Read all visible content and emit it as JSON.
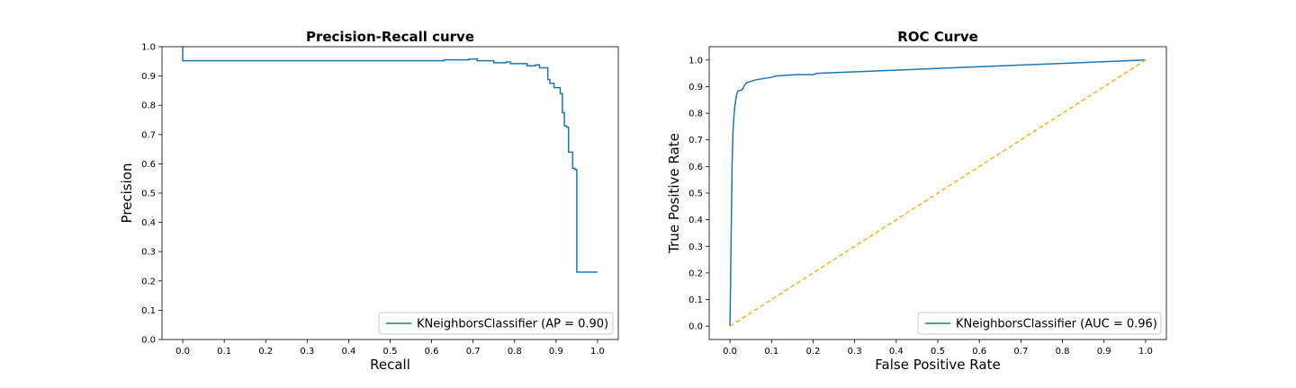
{
  "colors": {
    "curve": "#1f77b4",
    "chance_line": "#ffa500",
    "axes": "#000000",
    "legend_border": "#cccccc",
    "background": "#ffffff"
  },
  "chart_data": [
    {
      "type": "line",
      "title": "Precision-Recall curve",
      "xlabel": "Recall",
      "ylabel": "Precision",
      "xlim": [
        -0.05,
        1.05
      ],
      "ylim": [
        0.0,
        1.0
      ],
      "xticks": [
        "0.0",
        "0.1",
        "0.2",
        "0.3",
        "0.4",
        "0.5",
        "0.6",
        "0.7",
        "0.8",
        "0.9",
        "1.0"
      ],
      "yticks": [
        "0.0",
        "0.1",
        "0.2",
        "0.3",
        "0.4",
        "0.5",
        "0.6",
        "0.7",
        "0.8",
        "0.9",
        "1.0"
      ],
      "grid": false,
      "legend_position": "lower-right",
      "series": [
        {
          "name": "KNeighborsClassifier (AP = 0.90)",
          "drawstyle": "steps",
          "x": [
            0.0,
            0.0,
            0.63,
            0.63,
            0.69,
            0.69,
            0.71,
            0.71,
            0.75,
            0.75,
            0.78,
            0.78,
            0.79,
            0.79,
            0.83,
            0.83,
            0.85,
            0.85,
            0.86,
            0.86,
            0.88,
            0.88,
            0.885,
            0.885,
            0.895,
            0.895,
            0.91,
            0.91,
            0.915,
            0.915,
            0.92,
            0.92,
            0.925,
            0.925,
            0.93,
            0.93,
            0.94,
            0.94,
            0.945,
            0.945,
            0.95,
            0.95,
            1.0
          ],
          "y": [
            1.0,
            0.952,
            0.952,
            0.955,
            0.955,
            0.958,
            0.958,
            0.952,
            0.952,
            0.945,
            0.945,
            0.948,
            0.948,
            0.942,
            0.942,
            0.935,
            0.935,
            0.938,
            0.938,
            0.928,
            0.928,
            0.888,
            0.888,
            0.875,
            0.875,
            0.86,
            0.86,
            0.84,
            0.84,
            0.775,
            0.775,
            0.73,
            0.73,
            0.725,
            0.725,
            0.64,
            0.64,
            0.585,
            0.585,
            0.58,
            0.58,
            0.23,
            0.23
          ]
        }
      ]
    },
    {
      "type": "line",
      "title": "ROC Curve",
      "xlabel": "False Positive Rate",
      "ylabel": "True Positive Rate",
      "xlim": [
        -0.05,
        1.05
      ],
      "ylim": [
        -0.05,
        1.05
      ],
      "xticks": [
        "0.0",
        "0.1",
        "0.2",
        "0.3",
        "0.4",
        "0.5",
        "0.6",
        "0.7",
        "0.8",
        "0.9",
        "1.0"
      ],
      "yticks": [
        "0.0",
        "0.1",
        "0.2",
        "0.3",
        "0.4",
        "0.5",
        "0.6",
        "0.7",
        "0.8",
        "0.9",
        "1.0"
      ],
      "grid": false,
      "legend_position": "lower-right",
      "series": [
        {
          "name": "KNeighborsClassifier (AUC = 0.96)",
          "x": [
            0.0,
            0.005,
            0.007,
            0.008,
            0.01,
            0.012,
            0.014,
            0.016,
            0.018,
            0.02,
            0.025,
            0.03,
            0.035,
            0.04,
            0.05,
            0.06,
            0.08,
            0.1,
            0.11,
            0.16,
            0.2,
            0.21,
            1.0
          ],
          "y": [
            0.0,
            0.6,
            0.72,
            0.75,
            0.8,
            0.83,
            0.85,
            0.87,
            0.88,
            0.885,
            0.885,
            0.89,
            0.905,
            0.915,
            0.92,
            0.925,
            0.93,
            0.935,
            0.94,
            0.945,
            0.945,
            0.95,
            1.0
          ]
        },
        {
          "x": [
            0.0,
            1.0
          ],
          "y": [
            0.0,
            1.0
          ],
          "linestyle": "dashed"
        }
      ]
    }
  ]
}
